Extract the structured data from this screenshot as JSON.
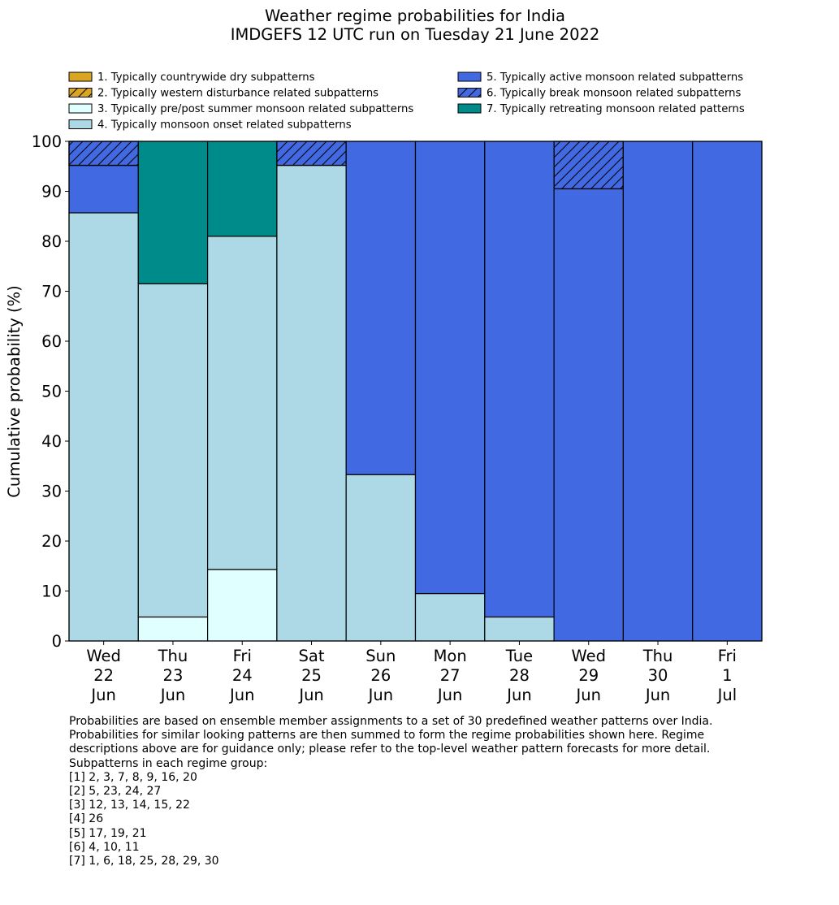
{
  "chart_data": {
    "type": "bar",
    "stacked": true,
    "title": "Weather regime probabilities for India",
    "subtitle": "IMDGEFS 12 UTC run on Tuesday 21 June 2022",
    "xlabel": "",
    "ylabel": "Cumulative probability (%)",
    "ylim": [
      0,
      100
    ],
    "yticks": [
      0,
      10,
      20,
      30,
      40,
      50,
      60,
      70,
      80,
      90,
      100
    ],
    "categories": [
      [
        "Wed",
        "22",
        "Jun"
      ],
      [
        "Thu",
        "23",
        "Jun"
      ],
      [
        "Fri",
        "24",
        "Jun"
      ],
      [
        "Sat",
        "25",
        "Jun"
      ],
      [
        "Sun",
        "26",
        "Jun"
      ],
      [
        "Mon",
        "27",
        "Jun"
      ],
      [
        "Tue",
        "28",
        "Jun"
      ],
      [
        "Wed",
        "29",
        "Jun"
      ],
      [
        "Thu",
        "30",
        "Jun"
      ],
      [
        "Fri",
        "1",
        "Jul"
      ]
    ],
    "legend_position": "top",
    "series": [
      {
        "name": "1. Typically countrywide dry subpatterns",
        "color": "#DAA520",
        "hatch": false,
        "values": [
          0,
          0,
          0,
          0,
          0,
          0,
          0,
          0,
          0,
          0
        ]
      },
      {
        "name": "2. Typically western disturbance related subpatterns",
        "color": "#DAA520",
        "hatch": true,
        "values": [
          0,
          0,
          0,
          0,
          0,
          0,
          0,
          0,
          0,
          0
        ]
      },
      {
        "name": "3. Typically pre/post summer monsoon related subpatterns",
        "color": "#E0FFFF",
        "hatch": false,
        "values": [
          0,
          4.8,
          14.3,
          0,
          0,
          0,
          0,
          0,
          0,
          0
        ]
      },
      {
        "name": "4. Typically monsoon onset related subpatterns",
        "color": "#ADD8E6",
        "hatch": false,
        "values": [
          85.7,
          66.7,
          66.7,
          95.2,
          33.3,
          9.5,
          4.8,
          0,
          0,
          0
        ]
      },
      {
        "name": "5. Typically active monsoon related subpatterns",
        "color": "#4169E1",
        "hatch": false,
        "values": [
          9.5,
          0,
          0,
          0,
          66.7,
          90.5,
          95.2,
          90.5,
          100,
          100
        ]
      },
      {
        "name": "6. Typically break monsoon related subpatterns",
        "color": "#4169E1",
        "hatch": true,
        "values": [
          4.8,
          0,
          0,
          4.8,
          0,
          0,
          0,
          9.5,
          0,
          0
        ]
      },
      {
        "name": "7. Typically retreating monsoon related patterns",
        "color": "#008B8B",
        "hatch": false,
        "values": [
          0,
          28.5,
          19.0,
          0,
          0,
          0,
          0,
          0,
          0,
          0
        ]
      }
    ]
  },
  "footnote": {
    "lines": [
      "Probabilities are based on ensemble member assignments to a set of 30 predefined weather patterns over India.",
      "Probabilities for similar looking patterns are then summed to form the regime probabilities shown here. Regime",
      "descriptions above are for guidance only; please refer to the top-level weather pattern forecasts for more detail.",
      "",
      "Subpatterns in each regime group:",
      "[1] 2, 3, 7, 8, 9, 16, 20",
      "[2] 5, 23, 24, 27",
      "[3] 12, 13, 14, 15, 22",
      "[4] 26",
      "[5] 17, 19, 21",
      "[6] 4, 10, 11",
      "[7] 1, 6, 18, 25, 28, 29, 30"
    ]
  }
}
